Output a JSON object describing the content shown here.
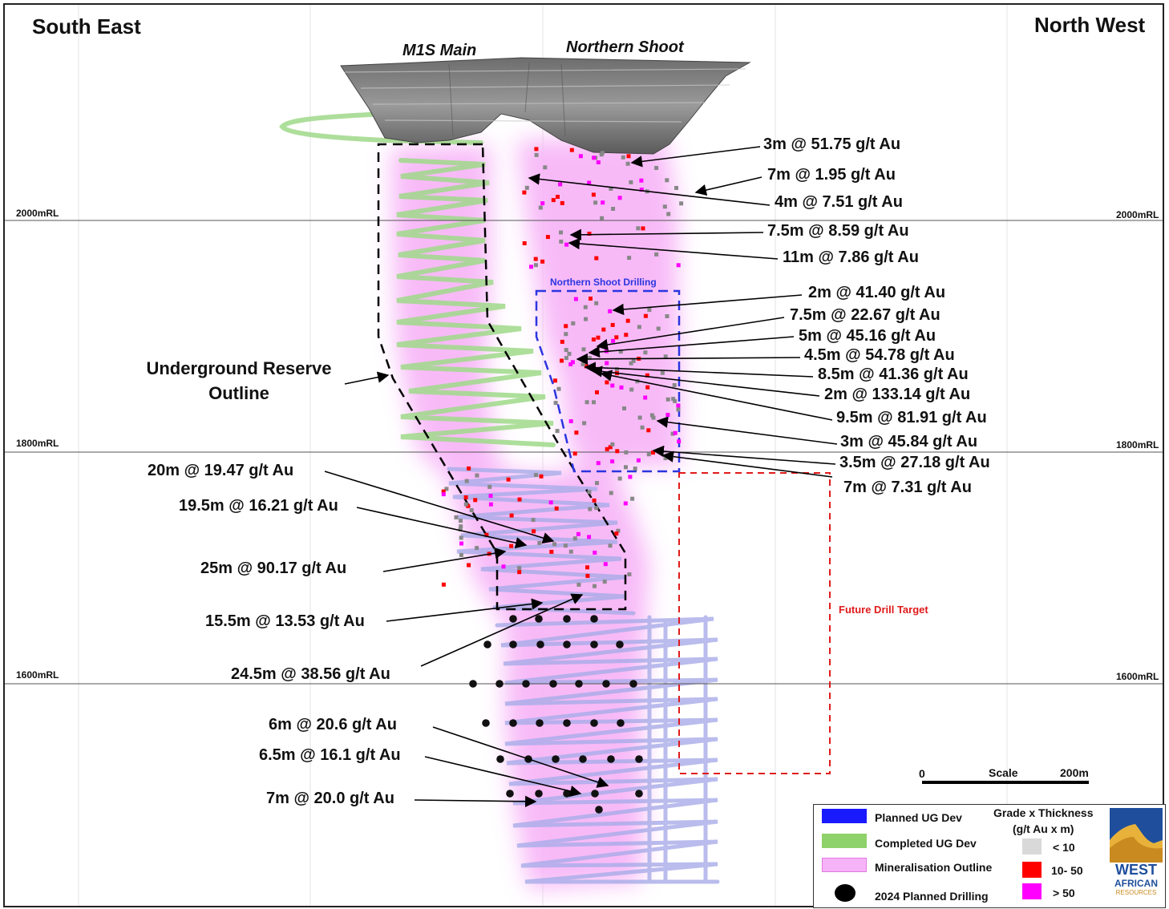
{
  "header": {
    "left_direction": "South East",
    "right_direction": "North West"
  },
  "shoots": {
    "m1s_main": "M1S Main",
    "northern_shoot": "Northern Shoot"
  },
  "levels": [
    {
      "label": "2000mRL"
    },
    {
      "label": "1800mRL"
    },
    {
      "label": "1600mRL"
    }
  ],
  "annotations": {
    "right": [
      "3m @ 51.75 g/t Au",
      "7m @ 1.95 g/t Au",
      "4m @ 7.51 g/t Au",
      "7.5m @ 8.59 g/t Au",
      "11m @ 7.86 g/t Au",
      "2m @ 41.40 g/t Au",
      "7.5m @ 22.67 g/t Au",
      "5m @ 45.16 g/t Au",
      "4.5m @ 54.78 g/t Au",
      "8.5m @ 41.36 g/t Au",
      "2m @ 133.14 g/t Au",
      "9.5m @ 81.91 g/t Au",
      "3m @ 45.84 g/t Au",
      "3.5m @ 27.18 g/t Au",
      "7m @ 7.31 g/t Au"
    ],
    "left": [
      "20m @ 19.47 g/t Au",
      "19.5m @ 16.21 g/t Au",
      "25m @ 90.17 g/t Au",
      "15.5m @ 13.53 g/t Au",
      "24.5m @ 38.56 g/t Au",
      "6m @ 20.6 g/t Au",
      "6.5m @ 16.1 g/t Au",
      "7m @ 20.0 g/t Au"
    ]
  },
  "labels": {
    "underground_reserve_line1": "Underground Reserve",
    "underground_reserve_line2": "Outline",
    "northern_shoot_drilling": "Northern Shoot Drilling",
    "future_drill_target": "Future Drill Target"
  },
  "scale": {
    "start": "0",
    "title": "Scale",
    "end": "200m"
  },
  "legend": {
    "items": [
      {
        "label": "Planned UG Dev",
        "color": "#1a1aff"
      },
      {
        "label": "Completed UG Dev",
        "color": "#8fd16a"
      },
      {
        "label": "Mineralisation Outline",
        "color": "#f7b3f7"
      },
      {
        "label": "2024 Planned Drilling",
        "color": "#000000"
      }
    ],
    "grade_title_1": "Grade x Thickness",
    "grade_title_2": "(g/t Au x m)",
    "grades": [
      {
        "label": "< 10",
        "color": "#d9d9d9"
      },
      {
        "label": "10- 50",
        "color": "#ff0000"
      },
      {
        "label": "> 50",
        "color": "#ff00ff"
      }
    ]
  },
  "logo": {
    "line1": "WEST",
    "line2": "AFRICAN",
    "line3": "RESOURCES"
  },
  "colors": {
    "planned_dev": "#9a9fe0",
    "completed_dev": "#8fd16a",
    "mineralisation": "#f7b3f7",
    "reserve_outline": "#000000",
    "ns_drilling_box": "#2b35e0",
    "future_target_box": "#e01b1b"
  }
}
